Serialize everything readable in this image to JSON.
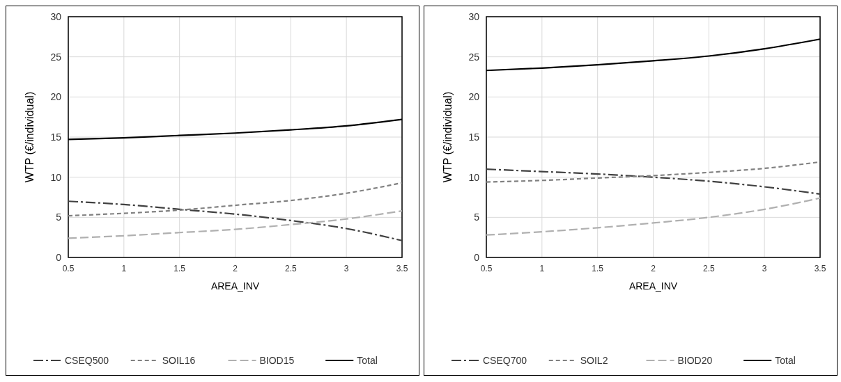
{
  "chart_data": [
    {
      "type": "line",
      "x": [
        0.5,
        1,
        1.5,
        2,
        2.5,
        3,
        3.5
      ],
      "xlabel": "AREA_INV",
      "ylabel": "WTP (€/individual)",
      "xlim": [
        0.5,
        3.5
      ],
      "xticks": [
        0.5,
        1,
        1.5,
        2,
        2.5,
        3,
        3.5
      ],
      "ylim": [
        0,
        30
      ],
      "yticks": [
        0,
        5,
        10,
        15,
        20,
        25,
        30
      ],
      "grid": true,
      "legend": "bottom",
      "marker": "none",
      "series": [
        {
          "name": "CSEQ500",
          "color": "#404040",
          "line_style": "dashed",
          "values": [
            7.0,
            6.6,
            6.0,
            5.4,
            4.6,
            3.6,
            2.1
          ]
        },
        {
          "name": "SOIL16",
          "color": "#808080",
          "line_style": "dashed",
          "values": [
            5.2,
            5.5,
            5.9,
            6.5,
            7.1,
            8.0,
            9.3
          ]
        },
        {
          "name": "BIOD15",
          "color": "#b0b0b0",
          "line_style": "dashed",
          "values": [
            2.4,
            2.7,
            3.1,
            3.5,
            4.1,
            4.8,
            5.8
          ]
        },
        {
          "name": "Total",
          "color": "#000000",
          "line_style": "solid",
          "values": [
            14.7,
            14.9,
            15.2,
            15.5,
            15.9,
            16.4,
            17.2
          ]
        }
      ]
    },
    {
      "type": "line",
      "x": [
        0.5,
        1,
        1.5,
        2,
        2.5,
        3,
        3.5
      ],
      "xlabel": "AREA_INV",
      "ylabel": "WTP (€/individual)",
      "xlim": [
        0.5,
        3.5
      ],
      "xticks": [
        0.5,
        1,
        1.5,
        2,
        2.5,
        3,
        3.5
      ],
      "ylim": [
        0,
        30
      ],
      "yticks": [
        0,
        5,
        10,
        15,
        20,
        25,
        30
      ],
      "grid": true,
      "legend": "bottom",
      "marker": "none",
      "series": [
        {
          "name": "CSEQ700",
          "color": "#404040",
          "line_style": "dashed",
          "values": [
            11.0,
            10.7,
            10.4,
            10.0,
            9.5,
            8.8,
            7.9
          ]
        },
        {
          "name": "SOIL2",
          "color": "#808080",
          "line_style": "dashed",
          "values": [
            9.4,
            9.6,
            9.9,
            10.2,
            10.6,
            11.1,
            11.9
          ]
        },
        {
          "name": "BIOD20",
          "color": "#b0b0b0",
          "line_style": "dashed",
          "values": [
            2.8,
            3.2,
            3.7,
            4.3,
            5.0,
            6.0,
            7.4
          ]
        },
        {
          "name": "Total",
          "color": "#000000",
          "line_style": "solid",
          "values": [
            23.3,
            23.6,
            24.0,
            24.5,
            25.1,
            26.0,
            27.2
          ]
        }
      ]
    }
  ]
}
